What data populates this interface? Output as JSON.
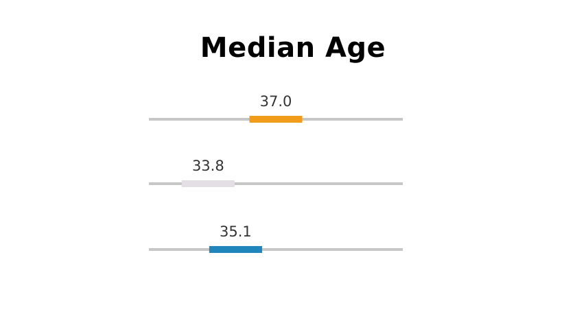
{
  "chart_data": {
    "type": "bar",
    "title": "Median Age",
    "xlim": [
      31,
      43
    ],
    "track_color": "#c6c6c6",
    "bar_width_years": 2.5,
    "series": [
      {
        "value": 37.0,
        "label": "37.0",
        "color": "#f29c1c"
      },
      {
        "value": 33.8,
        "label": "33.8",
        "color": "#e4dfe4"
      },
      {
        "value": 35.1,
        "label": "35.1",
        "color": "#1f86bb"
      }
    ]
  }
}
